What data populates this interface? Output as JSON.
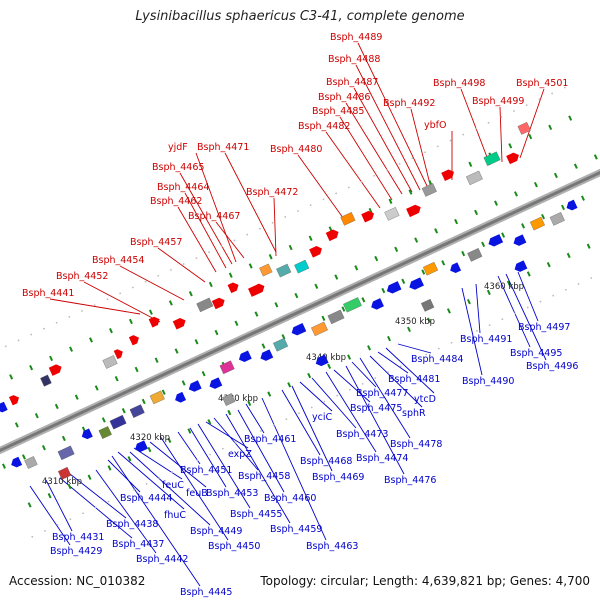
{
  "title": "Lysinibacillus sphaericus C3-41, complete genome",
  "accession": "Accession: NC_010382",
  "stats": "Topology: circular; Length: 4,639,821 bp; Genes: 4,700",
  "colors": {
    "forward_label": "#cc0000",
    "reverse_label": "#0000cc",
    "forward_gene": "#ee0000",
    "reverse_gene": "#0a14e0",
    "backbone": "#9a9a9a",
    "tick": "#1a8a1a"
  },
  "kbp_labels": [
    "4310 kbp",
    "4320 kbp",
    "4330 kbp",
    "4340 kbp",
    "4350 kbp",
    "4360 kbp"
  ],
  "forward_labels": [
    "Bsph_4441",
    "Bsph_4452",
    "Bsph_4454",
    "Bsph_4457",
    "Bsph_4462",
    "Bsph_4464",
    "Bsph_4465",
    "yjdF",
    "Bsph_4467",
    "Bsph_4471",
    "Bsph_4472",
    "Bsph_4480",
    "Bsph_4482",
    "Bsph_4485",
    "Bsph_4486",
    "Bsph_4487",
    "Bsph_4488",
    "Bsph_4489",
    "Bsph_4492",
    "ybfO",
    "Bsph_4498",
    "Bsph_4499",
    "Bsph_4501"
  ],
  "reverse_labels": [
    "Bsph_4429",
    "Bsph_4431",
    "Bsph_4437",
    "Bsph_4438",
    "Bsph_4442",
    "Bsph_4444",
    "Bsph_4445",
    "fhuC",
    "Bsph_4449",
    "feuC",
    "feuB",
    "Bsph_4450",
    "Bsph_4451",
    "Bsph_4453",
    "Bsph_4455",
    "expZ",
    "Bsph_4458",
    "Bsph_4459",
    "Bsph_4460",
    "Bsph_4461",
    "Bsph_4463",
    "Bsph_4468",
    "Bsph_4469",
    "yciC",
    "Bsph_4473",
    "Bsph_4474",
    "Bsph_4475",
    "Bsph_4476",
    "Bsph_4477",
    "Bsph_4478",
    "sphR",
    "Bsph_4481",
    "ytcD",
    "Bsph_4484",
    "Bsph_4490",
    "Bsph_4491",
    "Bsph_4495",
    "Bsph_4496",
    "Bsph_4497"
  ]
}
